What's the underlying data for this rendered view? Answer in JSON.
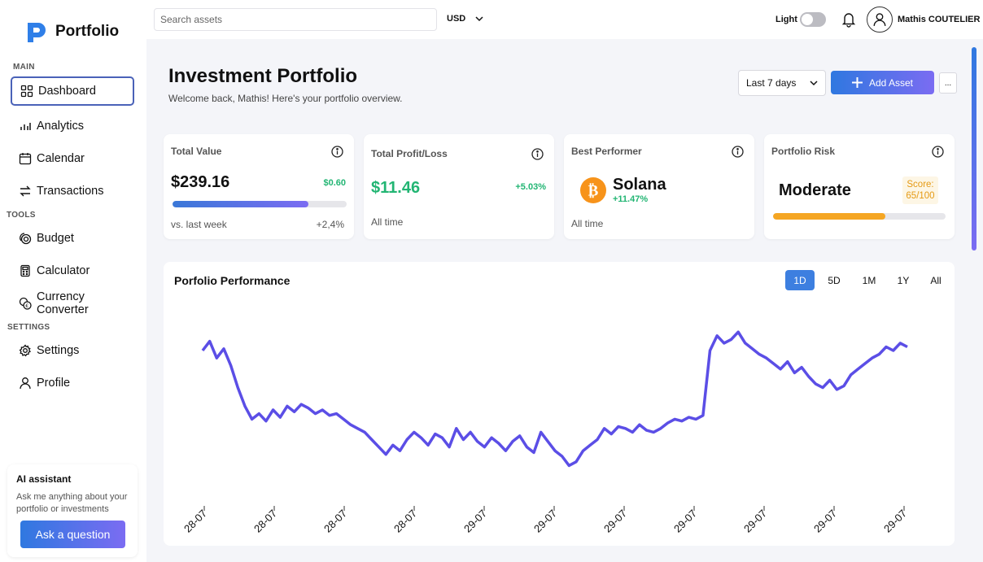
{
  "brand": {
    "name": "Portfolio",
    "accent": "#2f7fe8"
  },
  "sidebar": {
    "sections": [
      {
        "label": "MAIN",
        "items": [
          {
            "label": "Dashboard",
            "icon": "grid-icon",
            "active": true
          },
          {
            "label": "Analytics",
            "icon": "bar-chart-icon"
          },
          {
            "label": "Calendar",
            "icon": "calendar-icon"
          },
          {
            "label": "Transactions",
            "icon": "swap-icon"
          }
        ]
      },
      {
        "label": "TOOLS",
        "items": [
          {
            "label": "Budget",
            "icon": "coins-icon"
          },
          {
            "label": "Calculator",
            "icon": "calculator-icon"
          },
          {
            "label": "Currency Converter",
            "icon": "currency-icon"
          }
        ]
      },
      {
        "label": "SETTINGS",
        "items": [
          {
            "label": "Settings",
            "icon": "gear-icon"
          },
          {
            "label": "Profile",
            "icon": "user-icon"
          }
        ]
      }
    ],
    "ai": {
      "title": "AI assistant",
      "description": "Ask me anything about your portfolio or investments",
      "button": "Ask a question"
    }
  },
  "topbar": {
    "search_placeholder": "Search assets",
    "currency": "USD",
    "theme_label": "Light",
    "user_name": "Mathis COUTELIER"
  },
  "header": {
    "title": "Investment Portfolio",
    "subtitle": "Welcome back, Mathis! Here's your portfolio overview.",
    "range": "Last 7 days",
    "add_label": "Add Asset",
    "more_label": "..."
  },
  "cards": {
    "total_value": {
      "title": "Total Value",
      "value": "$239.16",
      "change": "$0.60",
      "progress": 0.78,
      "footer_left": "vs. last week",
      "footer_right": "+2,4%"
    },
    "profit": {
      "title": "Total Profit/Loss",
      "value": "$11.46",
      "change": "+5.03%",
      "footer": "All time"
    },
    "best": {
      "title": "Best Performer",
      "name": "Solana",
      "change": "+11.47%",
      "footer": "All time",
      "icon_color": "#f7931a"
    },
    "risk": {
      "title": "Portfolio Risk",
      "level": "Moderate",
      "score_label": "Score:",
      "score": "65/100",
      "score_value": 65,
      "bar_color": "#f5a623"
    }
  },
  "chart": {
    "title": "Porfolio Performance",
    "tabs": [
      "1D",
      "5D",
      "1M",
      "1Y",
      "All"
    ],
    "active_tab": "1D",
    "line_color": "#5b4ee6"
  },
  "chart_data": {
    "type": "line",
    "title": "Porfolio Performance",
    "xlabel": "",
    "ylabel": "",
    "x_ticks": [
      "28-07",
      "28-07",
      "28-07",
      "28-07",
      "29-07",
      "29-07",
      "29-07",
      "29-07",
      "29-07",
      "29-07",
      "29-07"
    ],
    "ylim": [
      0,
      100
    ],
    "grid": false,
    "values": [
      82,
      87,
      78,
      83,
      74,
      62,
      52,
      45,
      48,
      44,
      50,
      46,
      52,
      49,
      53,
      51,
      48,
      50,
      47,
      48,
      45,
      42,
      40,
      38,
      34,
      30,
      26,
      31,
      28,
      34,
      38,
      35,
      31,
      37,
      35,
      30,
      40,
      34,
      38,
      33,
      30,
      35,
      32,
      28,
      33,
      36,
      30,
      27,
      38,
      33,
      28,
      25,
      20,
      22,
      28,
      31,
      34,
      40,
      37,
      41,
      40,
      38,
      42,
      39,
      38,
      40,
      43,
      45,
      44,
      46,
      45,
      47,
      82,
      90,
      86,
      88,
      92,
      86,
      83,
      80,
      78,
      75,
      72,
      76,
      70,
      73,
      68,
      64,
      62,
      66,
      61,
      63,
      69,
      72,
      75,
      78,
      80,
      84,
      82,
      86,
      84
    ]
  }
}
